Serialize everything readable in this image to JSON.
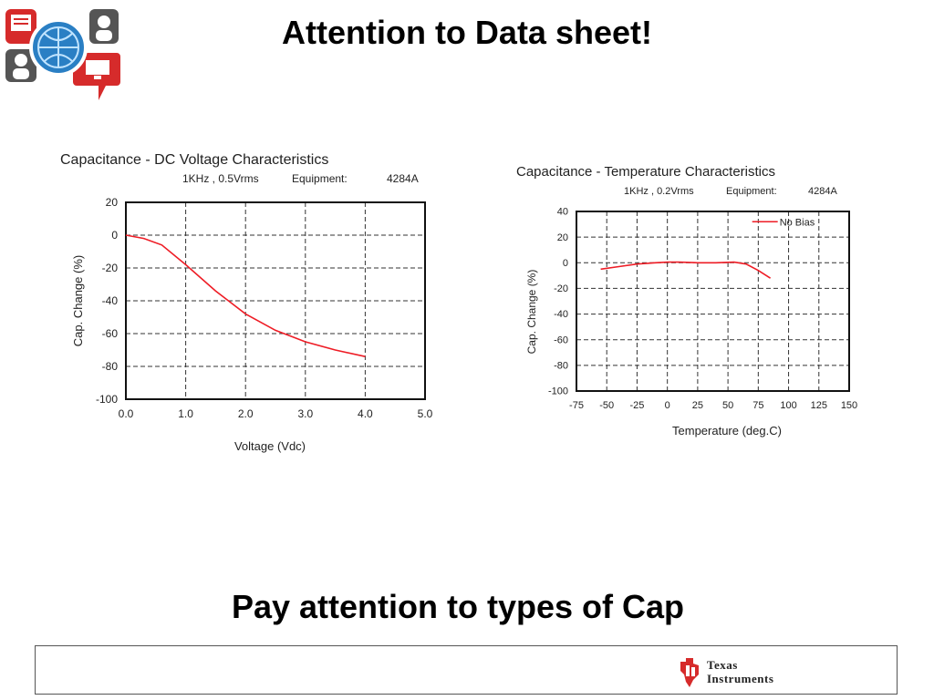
{
  "slide": {
    "title": "Attention to Data sheet!",
    "subtitle": "Pay attention to types of Cap",
    "footer_brand_line1": "Texas",
    "footer_brand_line2": "Instruments"
  },
  "colors": {
    "series": "#ee1c25",
    "grid": "#333333",
    "logo_red": "#d62b2b",
    "logo_blue": "#2a7fc4"
  },
  "chart_data": [
    {
      "type": "line",
      "title": "Capacitance - DC Voltage Characteristics",
      "conditions": "1KHz , 0.5Vrms",
      "equipment_label": "Equipment:",
      "equipment_value": "4284A",
      "xlabel": "Voltage (Vdc)",
      "ylabel": "Cap. Change (%)",
      "xlim": [
        0,
        5
      ],
      "ylim": [
        -100,
        20
      ],
      "xticks": [
        "0.0",
        "1.0",
        "2.0",
        "3.0",
        "4.0",
        "5.0"
      ],
      "yticks": [
        "20",
        "0",
        "-20",
        "-40",
        "-60",
        "-80",
        "-100"
      ],
      "grid": true,
      "series": [
        {
          "x": [
            0,
            0.3,
            0.6,
            1.0,
            1.5,
            2.0,
            2.5,
            3.0,
            3.5,
            4.0
          ],
          "y": [
            0,
            -2,
            -6,
            -18,
            -34,
            -48,
            -58,
            -65,
            -70,
            -74
          ]
        }
      ]
    },
    {
      "type": "line",
      "title": "Capacitance - Temperature Characteristics",
      "conditions": "1KHz , 0.2Vrms",
      "equipment_label": "Equipment:",
      "equipment_value": "4284A",
      "xlabel": "Temperature (deg.C)",
      "ylabel": "Cap. Change (%)",
      "xlim": [
        -75,
        150
      ],
      "ylim": [
        -100,
        40
      ],
      "xticks": [
        "-75",
        "-50",
        "-25",
        "0",
        "25",
        "50",
        "75",
        "100",
        "125",
        "150"
      ],
      "yticks": [
        "40",
        "20",
        "0",
        "-20",
        "-40",
        "-60",
        "-80",
        "-100"
      ],
      "grid": true,
      "legend": "top-right",
      "series": [
        {
          "name": "No Bias",
          "x": [
            -55,
            -40,
            -25,
            -10,
            0,
            10,
            25,
            40,
            55,
            65,
            75,
            85
          ],
          "y": [
            -5,
            -3,
            -1,
            0,
            0.5,
            0.5,
            0,
            0,
            0.5,
            -1,
            -6,
            -12
          ]
        }
      ]
    }
  ]
}
